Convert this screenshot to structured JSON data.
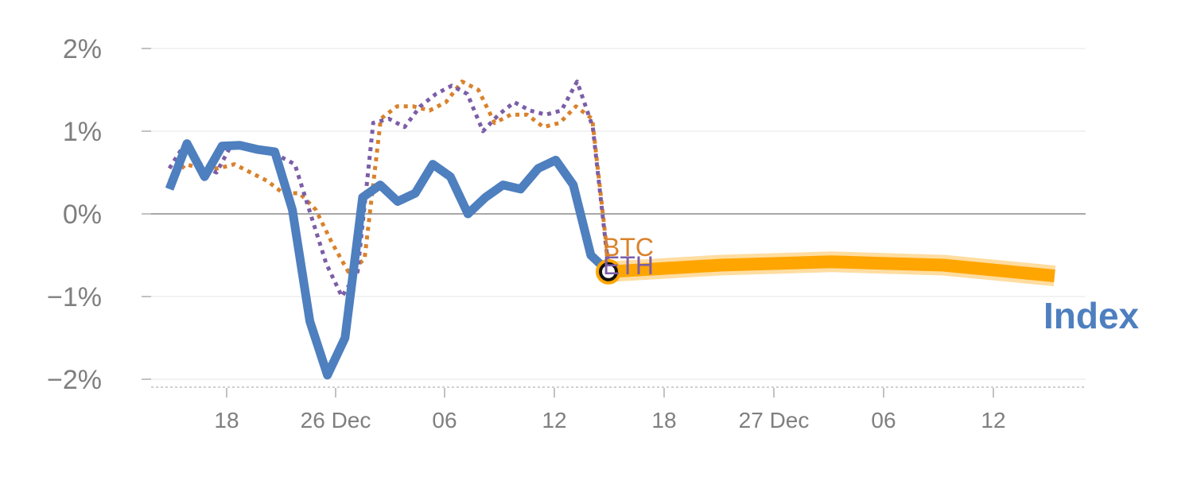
{
  "chart_data": {
    "type": "line",
    "title": "",
    "xlabel": "",
    "ylabel": "",
    "x_ticks": [
      "18",
      "26 Dec",
      "06",
      "12",
      "18",
      "27 Dec",
      "06",
      "12"
    ],
    "y_ticks": [
      "2%",
      "1%",
      "0%",
      "−1%",
      "−2%"
    ],
    "ylim": [
      -2.0,
      2.0
    ],
    "series": [
      {
        "name": "BTC",
        "color": "#D9822B",
        "style": "dotted",
        "values": [
          0.4,
          0.6,
          0.55,
          0.55,
          0.6,
          0.5,
          0.4,
          0.25,
          0.25,
          0.05,
          -0.35,
          -0.7,
          -0.55,
          1.15,
          1.3,
          1.3,
          1.25,
          1.35,
          1.6,
          1.5,
          1.1,
          1.2,
          1.2,
          1.05,
          1.1,
          1.3,
          1.15,
          -0.6
        ]
      },
      {
        "name": "ETH",
        "color": "#7B5EA7",
        "style": "dotted",
        "values": [
          0.55,
          0.85,
          0.6,
          0.5,
          0.85,
          0.8,
          0.75,
          0.7,
          0.6,
          0.0,
          -0.6,
          -1.0,
          -0.7,
          1.1,
          1.15,
          1.05,
          1.3,
          1.45,
          1.55,
          1.45,
          1.0,
          1.2,
          1.35,
          1.25,
          1.2,
          1.25,
          1.6,
          1.05,
          -0.65
        ]
      },
      {
        "name": "Index",
        "color": "#4E7FBF",
        "style": "solid",
        "values": [
          0.3,
          0.85,
          0.45,
          0.82,
          0.83,
          0.78,
          0.75,
          0.05,
          -1.3,
          -1.95,
          -1.5,
          0.2,
          0.35,
          0.15,
          0.25,
          0.6,
          0.45,
          0.0,
          0.2,
          0.35,
          0.3,
          0.55,
          0.65,
          0.35,
          -0.5,
          -0.7
        ]
      }
    ],
    "projection": {
      "color": "#FFA500",
      "values": [
        -0.7,
        -0.62,
        -0.58,
        -0.62,
        -0.75
      ]
    },
    "grid": true,
    "legend": "inline labels"
  }
}
